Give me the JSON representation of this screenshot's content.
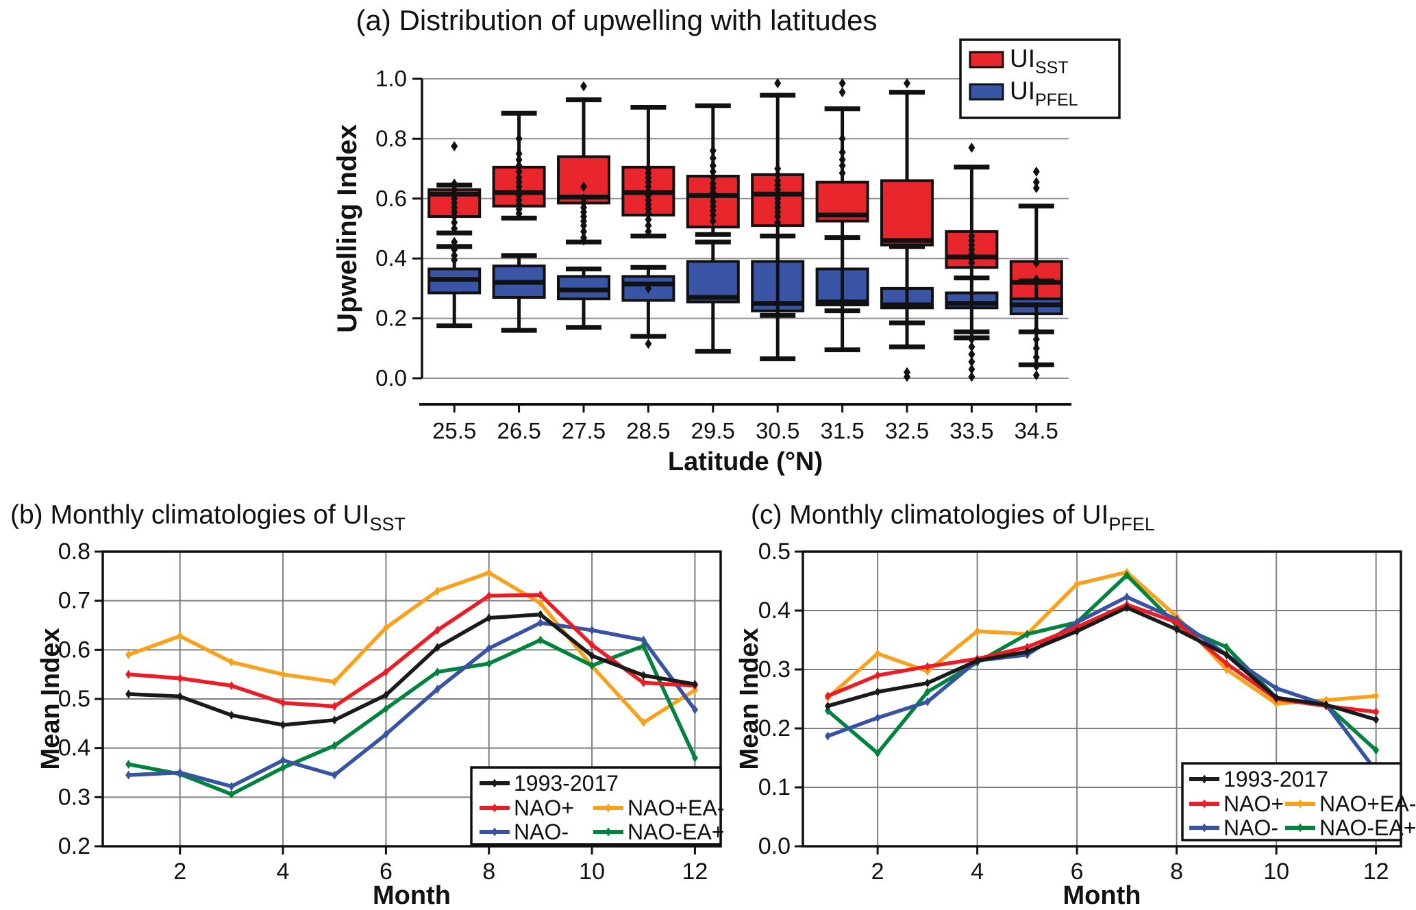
{
  "figure_title": "Upwelling index distribution and monthly climatologies",
  "colors": {
    "box_red": "#e8262b",
    "box_blue": "#3a55a5",
    "line_black": "#1a1a1a",
    "line_red": "#ec1c24",
    "line_orange": "#f9a11b",
    "line_blue": "#3853a4",
    "line_green": "#00843d",
    "grid": "#7f7f7f",
    "axis": "#111111"
  },
  "chart_data": [
    {
      "id": "a",
      "type": "boxplot",
      "title": "(a) Distribution of upwelling with latitudes",
      "xlabel": "Latitude (°N)",
      "ylabel": "Upwelling Index",
      "ylim": [
        0.0,
        1.0
      ],
      "yticks": [
        0.0,
        0.2,
        0.4,
        0.6,
        0.8,
        1.0
      ],
      "categories": [
        25.5,
        26.5,
        27.5,
        28.5,
        29.5,
        30.5,
        31.5,
        32.5,
        33.5,
        34.5
      ],
      "legend": [
        {
          "label": "UI",
          "sub": "SST",
          "color": "#e8262b"
        },
        {
          "label": "UI",
          "sub": "PFEL",
          "color": "#3a55a5"
        }
      ],
      "series": [
        {
          "name": "UI_SST",
          "color": "#e8262b",
          "boxes": [
            {
              "lat": 25.5,
              "lo": 0.485,
              "q1": 0.54,
              "med": 0.615,
              "q3": 0.63,
              "hi": 0.645,
              "fliers_hi": [
                0.775
              ],
              "fliers": [
                0.65,
                0.63,
                0.615,
                0.6,
                0.585,
                0.57,
                0.555,
                0.54,
                0.52,
                0.5,
                0.455,
                0.43,
                0.41,
                0.395
              ],
              "fliers_lo": []
            },
            {
              "lat": 26.5,
              "lo": 0.535,
              "q1": 0.575,
              "med": 0.62,
              "q3": 0.705,
              "hi": 0.885,
              "fliers_hi": [
                0.8
              ],
              "fliers": [
                0.75,
                0.73,
                0.71,
                0.69,
                0.67,
                0.655,
                0.64,
                0.625,
                0.61,
                0.595,
                0.58,
                0.565,
                0.55
              ],
              "fliers_lo": []
            },
            {
              "lat": 27.5,
              "lo": 0.455,
              "q1": 0.585,
              "med": 0.605,
              "q3": 0.74,
              "hi": 0.93,
              "fliers_hi": [
                0.975
              ],
              "fliers": [
                0.64,
                0.6,
                0.585,
                0.57,
                0.555,
                0.54,
                0.525,
                0.51,
                0.49,
                0.47,
                0.46
              ],
              "fliers_lo": []
            },
            {
              "lat": 28.5,
              "lo": 0.475,
              "q1": 0.545,
              "med": 0.62,
              "q3": 0.705,
              "hi": 0.905,
              "fliers_hi": [],
              "fliers": [
                0.7,
                0.685,
                0.67,
                0.655,
                0.64,
                0.625,
                0.61,
                0.595,
                0.58,
                0.565,
                0.55,
                0.53,
                0.51,
                0.49
              ],
              "fliers_lo": []
            },
            {
              "lat": 29.5,
              "lo": 0.48,
              "q1": 0.505,
              "med": 0.61,
              "q3": 0.675,
              "hi": 0.91,
              "fliers_hi": [],
              "fliers": [
                0.76,
                0.735,
                0.71,
                0.69,
                0.67,
                0.65,
                0.635,
                0.62,
                0.605,
                0.59,
                0.575,
                0.56,
                0.545,
                0.525
              ],
              "fliers_lo": []
            },
            {
              "lat": 30.5,
              "lo": 0.21,
              "q1": 0.51,
              "med": 0.615,
              "q3": 0.68,
              "hi": 0.945,
              "fliers_hi": [
                0.985
              ],
              "fliers": [
                0.7,
                0.68,
                0.66,
                0.645,
                0.63,
                0.615,
                0.6,
                0.585,
                0.57,
                0.555,
                0.54,
                0.52
              ],
              "fliers_lo": []
            },
            {
              "lat": 31.5,
              "lo": 0.225,
              "q1": 0.525,
              "med": 0.545,
              "q3": 0.655,
              "hi": 0.9,
              "fliers_hi": [
                0.985,
                0.955
              ],
              "fliers": [
                0.8,
                0.755,
                0.73,
                0.71,
                0.685
              ],
              "fliers_lo": []
            },
            {
              "lat": 32.5,
              "lo": 0.185,
              "q1": 0.445,
              "med": 0.46,
              "q3": 0.66,
              "hi": 0.955,
              "fliers_hi": [
                0.985
              ],
              "fliers": [],
              "fliers_lo": []
            },
            {
              "lat": 33.5,
              "lo": 0.155,
              "q1": 0.37,
              "med": 0.405,
              "q3": 0.49,
              "hi": 0.705,
              "fliers_hi": [
                0.77
              ],
              "fliers": [
                0.475,
                0.46,
                0.445,
                0.43,
                0.415,
                0.4,
                0.385
              ],
              "fliers_lo": []
            },
            {
              "lat": 34.5,
              "lo": 0.155,
              "q1": 0.245,
              "med": 0.32,
              "q3": 0.39,
              "hi": 0.575,
              "fliers_hi": [],
              "fliers": [
                0.69,
                0.655,
                0.635,
                0.385,
                0.33
              ],
              "fliers_lo": []
            }
          ]
        },
        {
          "name": "UI_PFEL",
          "color": "#3a55a5",
          "boxes": [
            {
              "lat": 25.5,
              "lo": 0.175,
              "q1": 0.285,
              "med": 0.33,
              "q3": 0.365,
              "hi": 0.44,
              "fliers_hi": [],
              "fliers": [],
              "fliers_lo": []
            },
            {
              "lat": 26.5,
              "lo": 0.16,
              "q1": 0.27,
              "med": 0.32,
              "q3": 0.375,
              "hi": 0.41,
              "fliers_hi": [],
              "fliers": [],
              "fliers_lo": []
            },
            {
              "lat": 27.5,
              "lo": 0.17,
              "q1": 0.265,
              "med": 0.295,
              "q3": 0.34,
              "hi": 0.365,
              "fliers_hi": [],
              "fliers": [],
              "fliers_lo": []
            },
            {
              "lat": 28.5,
              "lo": 0.14,
              "q1": 0.26,
              "med": 0.315,
              "q3": 0.34,
              "hi": 0.37,
              "fliers_hi": [],
              "fliers": [
                0.3
              ],
              "fliers_lo": [
                0.115
              ]
            },
            {
              "lat": 29.5,
              "lo": 0.09,
              "q1": 0.255,
              "med": 0.27,
              "q3": 0.39,
              "hi": 0.455,
              "fliers_hi": [],
              "fliers": [],
              "fliers_lo": []
            },
            {
              "lat": 30.5,
              "lo": 0.065,
              "q1": 0.225,
              "med": 0.25,
              "q3": 0.39,
              "hi": 0.475,
              "fliers_hi": [],
              "fliers": [],
              "fliers_lo": []
            },
            {
              "lat": 31.5,
              "lo": 0.095,
              "q1": 0.245,
              "med": 0.255,
              "q3": 0.365,
              "hi": 0.47,
              "fliers_hi": [],
              "fliers": [],
              "fliers_lo": []
            },
            {
              "lat": 32.5,
              "lo": 0.105,
              "q1": 0.235,
              "med": 0.245,
              "q3": 0.3,
              "hi": 0.44,
              "fliers_hi": [],
              "fliers": [],
              "fliers_lo": [
                0.02,
                0.005
              ]
            },
            {
              "lat": 33.5,
              "lo": 0.135,
              "q1": 0.235,
              "med": 0.25,
              "q3": 0.285,
              "hi": 0.335,
              "fliers_hi": [],
              "fliers": [],
              "fliers_lo": [
                0.13,
                0.105,
                0.08,
                0.055,
                0.03,
                0.005
              ]
            },
            {
              "lat": 34.5,
              "lo": 0.045,
              "q1": 0.215,
              "med": 0.245,
              "q3": 0.265,
              "hi": 0.325,
              "fliers_hi": [],
              "fliers": [],
              "fliers_lo": [
                0.16,
                0.13,
                0.1,
                0.07,
                0.04,
                0.01
              ]
            }
          ]
        }
      ]
    },
    {
      "id": "b",
      "type": "line",
      "title_prefix": "(b) Monthly climatologies of UI",
      "title_sub": "SST",
      "xlabel": "Month",
      "ylabel": "Mean Index",
      "ylim": [
        0.2,
        0.8
      ],
      "yticks": [
        0.2,
        0.3,
        0.4,
        0.5,
        0.6,
        0.7,
        0.8
      ],
      "xticks": [
        2,
        4,
        6,
        8,
        10,
        12
      ],
      "x": [
        1,
        2,
        3,
        4,
        5,
        6,
        7,
        8,
        9,
        10,
        11,
        12
      ],
      "series": [
        {
          "name": "1993-2017",
          "color": "#1a1a1a",
          "values": [
            0.51,
            0.505,
            0.467,
            0.447,
            0.457,
            0.508,
            0.605,
            0.665,
            0.672,
            0.588,
            0.548,
            0.53
          ]
        },
        {
          "name": "NAO+",
          "color": "#ec1c24",
          "values": [
            0.55,
            0.542,
            0.527,
            0.492,
            0.485,
            0.555,
            0.64,
            0.71,
            0.712,
            0.61,
            0.533,
            0.527
          ]
        },
        {
          "name": "NAO+EA-",
          "color": "#f9a11b",
          "values": [
            0.59,
            0.628,
            0.575,
            0.55,
            0.535,
            0.645,
            0.72,
            0.757,
            0.695,
            0.567,
            0.452,
            0.518
          ]
        },
        {
          "name": "NAO-",
          "color": "#3853a4",
          "values": [
            0.345,
            0.35,
            0.322,
            0.375,
            0.345,
            0.428,
            0.52,
            0.603,
            0.655,
            0.64,
            0.62,
            0.478
          ]
        },
        {
          "name": "NAO-EA+",
          "color": "#00843d",
          "values": [
            0.367,
            0.347,
            0.306,
            0.36,
            0.405,
            0.48,
            0.555,
            0.572,
            0.62,
            0.568,
            0.608,
            0.38
          ]
        }
      ],
      "legend_rows": [
        [
          "1993-2017"
        ],
        [
          "NAO+",
          "NAO+EA-"
        ],
        [
          "NAO-",
          "NAO-EA+"
        ]
      ]
    },
    {
      "id": "c",
      "type": "line",
      "title_prefix": "(c) Monthly climatologies of UI",
      "title_sub": "PFEL",
      "xlabel": "Month",
      "ylabel": "Mean Index",
      "ylim": [
        0.0,
        0.5
      ],
      "yticks": [
        0.0,
        0.1,
        0.2,
        0.3,
        0.4,
        0.5
      ],
      "xticks": [
        2,
        4,
        6,
        8,
        10,
        12
      ],
      "x": [
        1,
        2,
        3,
        4,
        5,
        6,
        7,
        8,
        9,
        10,
        11,
        12
      ],
      "series": [
        {
          "name": "1993-2017",
          "color": "#1a1a1a",
          "values": [
            0.238,
            0.262,
            0.277,
            0.315,
            0.33,
            0.365,
            0.405,
            0.368,
            0.325,
            0.252,
            0.24,
            0.215
          ]
        },
        {
          "name": "NAO+",
          "color": "#ec1c24",
          "values": [
            0.255,
            0.29,
            0.305,
            0.318,
            0.338,
            0.372,
            0.41,
            0.38,
            0.31,
            0.25,
            0.238,
            0.228
          ]
        },
        {
          "name": "NAO+EA-",
          "color": "#f9a11b",
          "values": [
            0.252,
            0.327,
            0.297,
            0.365,
            0.36,
            0.445,
            0.465,
            0.39,
            0.3,
            0.242,
            0.248,
            0.255
          ]
        },
        {
          "name": "NAO-",
          "color": "#3853a4",
          "values": [
            0.187,
            0.218,
            0.245,
            0.315,
            0.325,
            0.38,
            0.423,
            0.385,
            0.325,
            0.268,
            0.24,
            0.128
          ]
        },
        {
          "name": "NAO-EA+",
          "color": "#00843d",
          "values": [
            0.23,
            0.158,
            0.262,
            0.312,
            0.36,
            0.38,
            0.46,
            0.375,
            0.338,
            0.252,
            0.24,
            0.163
          ]
        }
      ],
      "legend_rows": [
        [
          "1993-2017"
        ],
        [
          "NAO+",
          "NAO+EA-"
        ],
        [
          "NAO-",
          "NAO-EA+"
        ]
      ]
    }
  ]
}
